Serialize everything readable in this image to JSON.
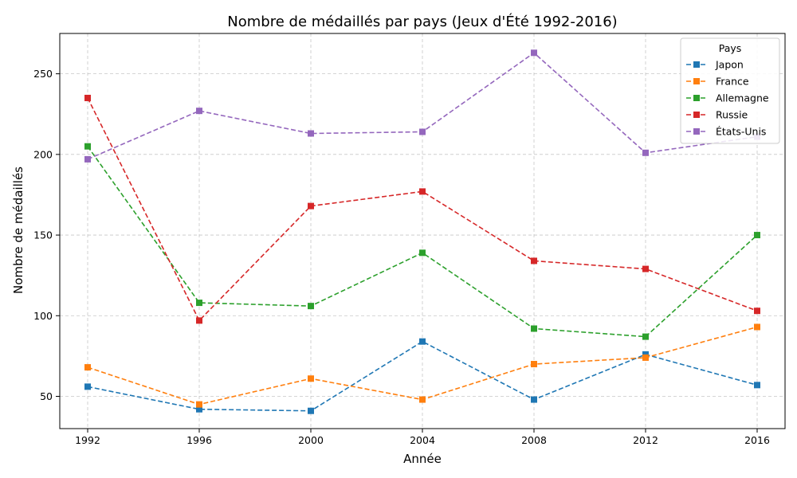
{
  "chart_data": {
    "type": "line",
    "title": "Nombre de médaillés par pays (Jeux d'Été 1992-2016)",
    "xlabel": "Année",
    "ylabel": "Nombre de médaillés",
    "x": [
      1992,
      1996,
      2000,
      2004,
      2008,
      2012,
      2016
    ],
    "x_ticks": [
      "1992",
      "1996",
      "2000",
      "2004",
      "2008",
      "2012",
      "2016"
    ],
    "y_ticks": [
      50,
      100,
      150,
      200,
      250
    ],
    "xlim": [
      1991,
      2017
    ],
    "ylim": [
      30,
      275
    ],
    "grid": true,
    "legend": {
      "title": "Pays",
      "placement": "top-right"
    },
    "series": [
      {
        "name": "Japon",
        "color": "#1f77b4",
        "values": [
          56,
          42,
          41,
          84,
          48,
          76,
          57
        ]
      },
      {
        "name": "France",
        "color": "#ff7f0e",
        "values": [
          68,
          45,
          61,
          48,
          70,
          74,
          93
        ]
      },
      {
        "name": "Allemagne",
        "color": "#2ca02c",
        "values": [
          205,
          108,
          106,
          139,
          92,
          87,
          150
        ]
      },
      {
        "name": "Russie",
        "color": "#d62728",
        "values": [
          235,
          97,
          168,
          177,
          134,
          129,
          103
        ]
      },
      {
        "name": "États-Unis",
        "color": "#9467bd",
        "values": [
          197,
          227,
          213,
          214,
          263,
          201,
          211
        ]
      }
    ]
  }
}
